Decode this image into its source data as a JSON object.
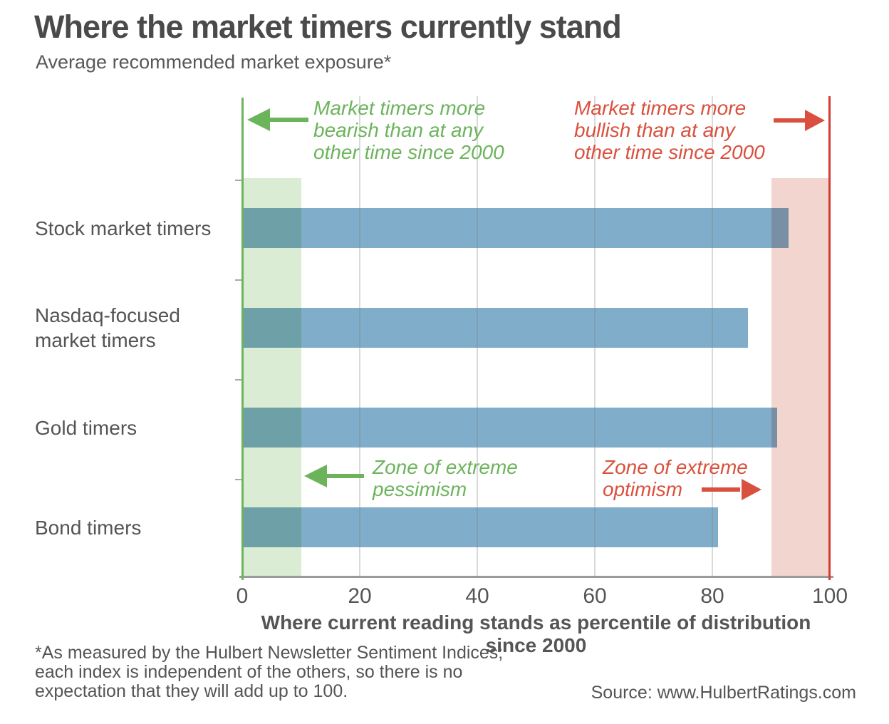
{
  "title": "Where the market timers currently stand",
  "subtitle": "Average recommended market exposure*",
  "annotations": {
    "bearish": "Market timers more\nbearish than at any\nother time since 2000",
    "bullish": "Market timers more\nbullish than at any\nother time since 2000",
    "pessimism_zone": "Zone of extreme\npessimism",
    "optimism_zone": "Zone of extreme\noptimism"
  },
  "chart_data": {
    "type": "bar",
    "orientation": "horizontal",
    "categories": [
      "Stock market timers",
      "Nasdaq-focused\nmarket timers",
      "Gold timers",
      "Bond timers"
    ],
    "values": [
      93,
      86,
      91,
      81
    ],
    "xlabel": "Where current reading stands as percentile of distribution since 2000",
    "xlim": [
      0,
      100
    ],
    "xticks": [
      0,
      20,
      40,
      60,
      80,
      100
    ],
    "zones": [
      {
        "label": "extreme pessimism",
        "from": 0,
        "to": 10,
        "color": "#daecd3"
      },
      {
        "label": "extreme optimism",
        "from": 90,
        "to": 100,
        "color": "#f2d5cf"
      }
    ],
    "grid": true,
    "legend": "none"
  },
  "footnote": "*As measured by the Hulbert Newsletter Sentiment Indices;\neach index is independent of the others, so there is no\nexpectation that they will add up to 100.",
  "source": "Source: www.HulbertRatings.com",
  "colors": {
    "bar": "#7fadca",
    "green": "#6cb45c",
    "red": "#d9513e",
    "red_line": "#d23c32",
    "zone_green": "#daecd3",
    "zone_pink": "#f2d5cf"
  }
}
